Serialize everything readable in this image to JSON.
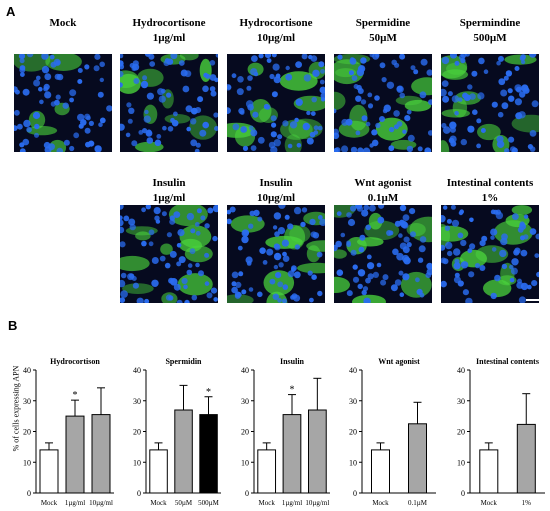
{
  "panel_a": {
    "letter": "A",
    "images": [
      {
        "line1": "Mock",
        "line2": ""
      },
      {
        "line1": "Hydrocortisone",
        "line2": "1µg/ml"
      },
      {
        "line1": "Hydrocortisone",
        "line2": "10µg/ml"
      },
      {
        "line1": "Spermidine",
        "line2": "50µM"
      },
      {
        "line1": "Spermindine",
        "line2": "500µM"
      },
      {
        "line1": "Insulin",
        "line2": "1µg/ml"
      },
      {
        "line1": "Insulin",
        "line2": "10µg/ml"
      },
      {
        "line1": "Wnt agonist",
        "line2": "0.1µM"
      },
      {
        "line1": "Intestinal contents",
        "line2": "1%"
      }
    ],
    "colors": {
      "nuclei": "#2a6cf0",
      "apn_stain": "#49d23c",
      "background": "#060a1f"
    }
  },
  "panel_b": {
    "letter": "B",
    "ylabel": "% of cells expressing APN"
  },
  "chart_data": [
    {
      "type": "bar",
      "title": "Hydrocortison",
      "categories": [
        "Mock",
        "1µg/ml",
        "10µg/ml"
      ],
      "values": [
        14,
        25,
        25.5
      ],
      "errors": [
        2.3,
        5.2,
        8.7
      ],
      "fills": [
        "#ffffff",
        "#a6a6a6",
        "#a6a6a6"
      ],
      "significance": [
        "",
        "*",
        ""
      ],
      "ylim": [
        0,
        40
      ],
      "yticks": [
        0,
        10,
        20,
        30,
        40
      ]
    },
    {
      "type": "bar",
      "title": "Spermidin",
      "categories": [
        "Mock",
        "50µM",
        "500µM"
      ],
      "values": [
        14,
        27,
        25.5
      ],
      "errors": [
        2.3,
        8,
        5.8
      ],
      "fills": [
        "#ffffff",
        "#a6a6a6",
        "#000000"
      ],
      "significance": [
        "",
        "",
        "*"
      ],
      "ylim": [
        0,
        40
      ],
      "yticks": [
        0,
        10,
        20,
        30,
        40
      ]
    },
    {
      "type": "bar",
      "title": "Insulin",
      "categories": [
        "Mock",
        "1µg/ml",
        "10µg/ml"
      ],
      "values": [
        14,
        25.5,
        27
      ],
      "errors": [
        2.3,
        6.5,
        10.3
      ],
      "fills": [
        "#ffffff",
        "#a6a6a6",
        "#a6a6a6"
      ],
      "significance": [
        "",
        "*",
        ""
      ],
      "ylim": [
        0,
        40
      ],
      "yticks": [
        0,
        10,
        20,
        30,
        40
      ]
    },
    {
      "type": "bar",
      "title": "Wnt agonist",
      "categories": [
        "Mock",
        "0.1µM"
      ],
      "values": [
        14,
        22.5
      ],
      "errors": [
        2.3,
        7
      ],
      "fills": [
        "#ffffff",
        "#a6a6a6"
      ],
      "significance": [
        "",
        ""
      ],
      "ylim": [
        0,
        40
      ],
      "yticks": [
        0,
        10,
        20,
        30,
        40
      ]
    },
    {
      "type": "bar",
      "title": "Intestinal contents",
      "categories": [
        "Mock",
        "1%"
      ],
      "values": [
        14,
        22.3
      ],
      "errors": [
        2.3,
        10
      ],
      "fills": [
        "#ffffff",
        "#a6a6a6"
      ],
      "significance": [
        "",
        ""
      ],
      "ylim": [
        0,
        40
      ],
      "yticks": [
        0,
        10,
        20,
        30,
        40
      ]
    }
  ]
}
